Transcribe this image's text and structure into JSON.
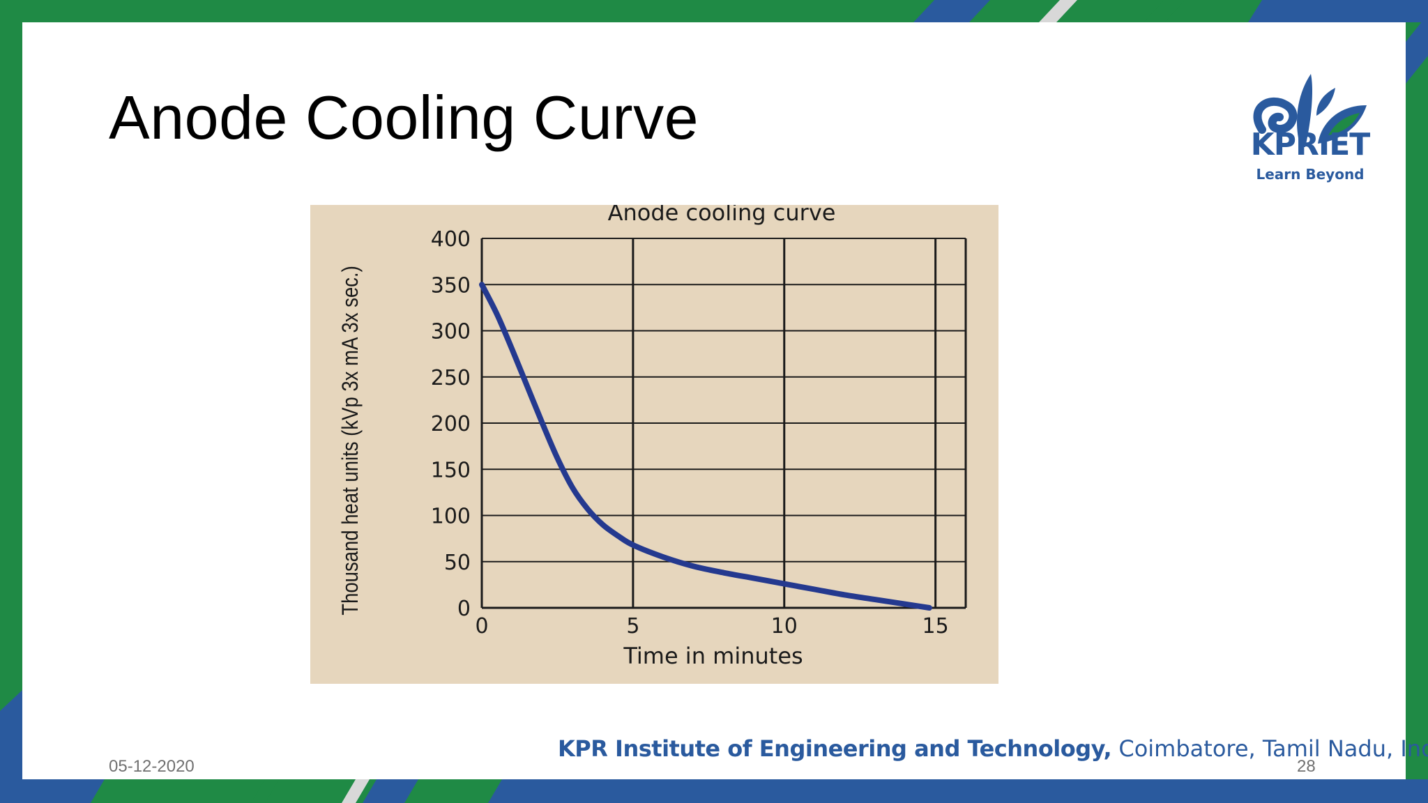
{
  "slide": {
    "title": "Anode Cooling Curve",
    "date": "05-12-2020",
    "page_number": "28"
  },
  "logo": {
    "name": "KPRIET",
    "tagline": "Learn Beyond",
    "icon": "lotus-leaf-icon"
  },
  "footer": {
    "institution_bold": "KPR Institute of Engineering and Technology,",
    "institution_rest": " Coimbatore, Tamil Nadu, India"
  },
  "colors": {
    "green": "#1f8a45",
    "blue": "#2a5a9e",
    "curve": "#24398f",
    "chart_bg": "#e6d6bd"
  },
  "chart_data": {
    "type": "line",
    "title": "Anode cooling curve",
    "xlabel": "Time in minutes",
    "ylabel": "Thousand heat units (kVp 3x mA 3x sec.)",
    "xlim": [
      0,
      16
    ],
    "ylim": [
      0,
      400
    ],
    "x_ticks": [
      0,
      5,
      10,
      15
    ],
    "y_ticks": [
      0,
      50,
      100,
      150,
      200,
      250,
      300,
      350,
      400
    ],
    "grid": true,
    "series": [
      {
        "x": [
          0,
          0.5,
          1,
          1.5,
          2,
          2.5,
          3,
          3.5,
          4,
          4.5,
          5,
          6,
          7,
          8,
          9,
          10,
          11,
          12,
          13,
          14,
          14.8
        ],
        "y": [
          350,
          318,
          280,
          240,
          200,
          162,
          130,
          107,
          90,
          78,
          68,
          55,
          45,
          38,
          32,
          26,
          20,
          14,
          9,
          4,
          0
        ]
      }
    ]
  }
}
